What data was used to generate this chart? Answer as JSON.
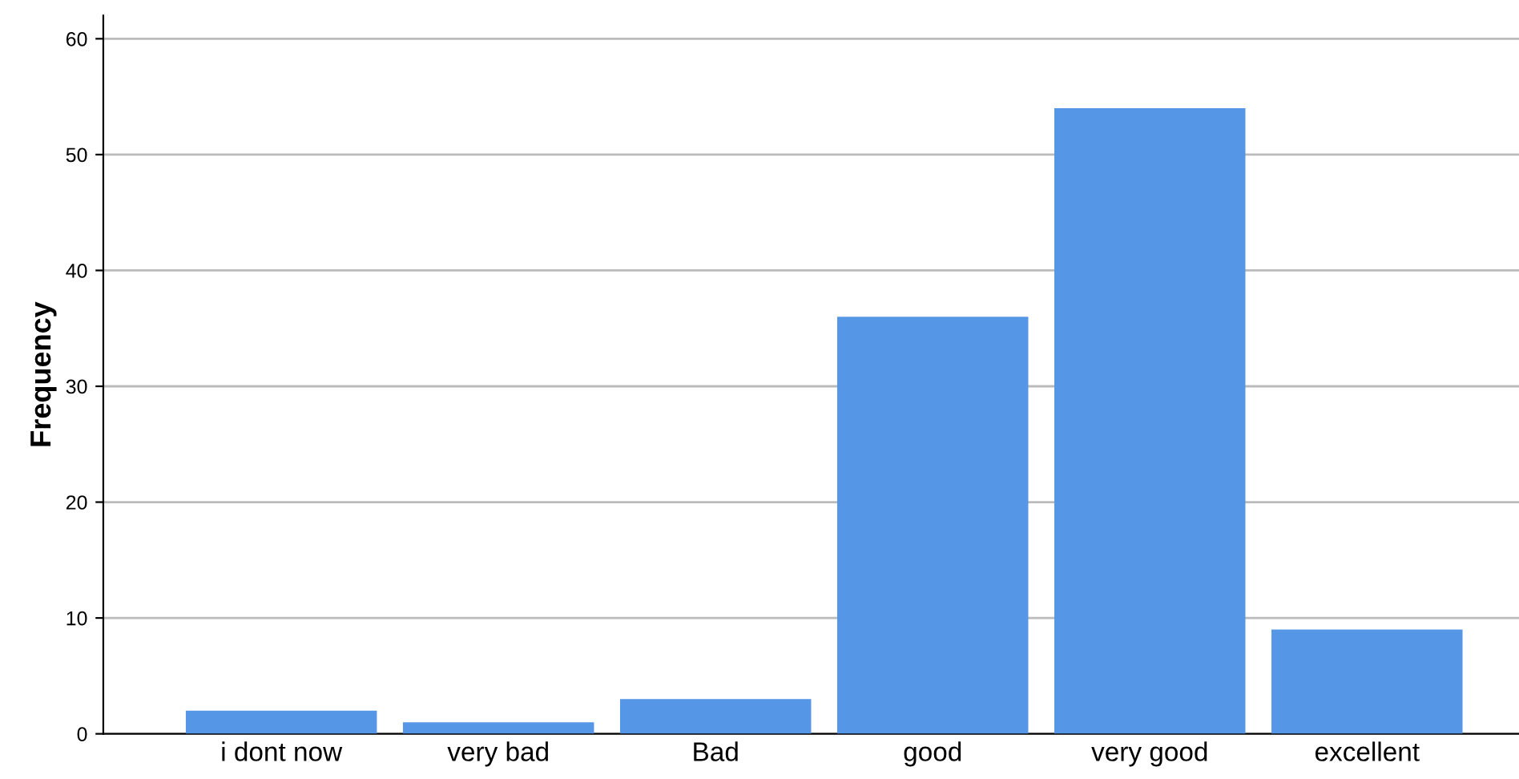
{
  "chart_data": {
    "type": "bar",
    "ylabel": "Frequency",
    "categories": [
      "i dont now",
      "very bad",
      "Bad",
      "good",
      "very good",
      "excellent"
    ],
    "values": [
      2,
      1,
      3,
      36,
      54,
      9
    ],
    "color": "#5596e6",
    "ylim": [
      0,
      62
    ],
    "yticks": [
      0,
      10,
      20,
      30,
      40,
      50,
      60
    ],
    "grid": "y"
  }
}
